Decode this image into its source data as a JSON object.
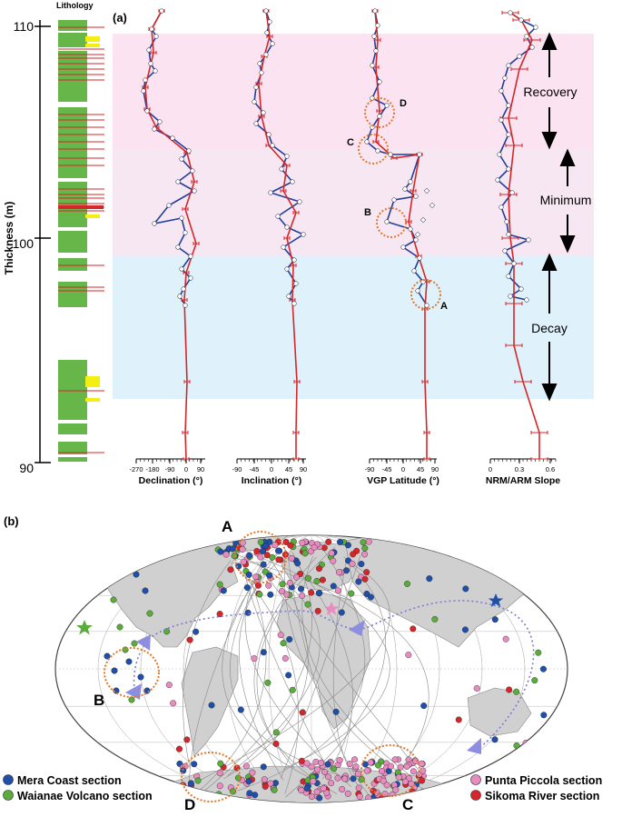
{
  "panel_a": {
    "label": "(a)",
    "lithology_title": "Lithology",
    "y_axis": {
      "label": "Thickness (m)",
      "ticks": [
        "110",
        "100",
        "90"
      ]
    },
    "zones": [
      {
        "name": "Recovery",
        "color": "#fbe3f1"
      },
      {
        "name": "Minimum",
        "color": "#f7e7f3"
      },
      {
        "name": "Decay",
        "color": "#dff1fa"
      }
    ],
    "plots": [
      {
        "xlabel": "Declination (°)",
        "ticks": [
          "-270",
          "-180",
          "-90",
          "0",
          "90"
        ]
      },
      {
        "xlabel": "Inclination (°)",
        "ticks": [
          "-90",
          "-45",
          "0",
          "45",
          "90"
        ]
      },
      {
        "xlabel": "VGP Latitude (°)",
        "ticks": [
          "-90",
          "-45",
          "0",
          "45",
          "90"
        ]
      },
      {
        "xlabel": "NRM/ARM Slope",
        "ticks": [
          "0",
          "0.3",
          "0.6"
        ]
      }
    ],
    "circle_labels": [
      "A",
      "B",
      "C",
      "D"
    ],
    "line_colors": {
      "mean": "#d62728",
      "detail": "#1f3f9a",
      "circles": "#e0782c"
    }
  },
  "panel_b": {
    "label": "(b)",
    "map_labels": [
      "A",
      "B",
      "C",
      "D"
    ],
    "legend": [
      {
        "name": "Mera Coast section",
        "color": "#1f4fa8"
      },
      {
        "name": "Waianae Volcano section",
        "color": "#5aac3c"
      },
      {
        "name": "Punta Piccola section",
        "color": "#e98bbf"
      },
      {
        "name": "Sikoma River section",
        "color": "#d7262b"
      }
    ]
  }
}
